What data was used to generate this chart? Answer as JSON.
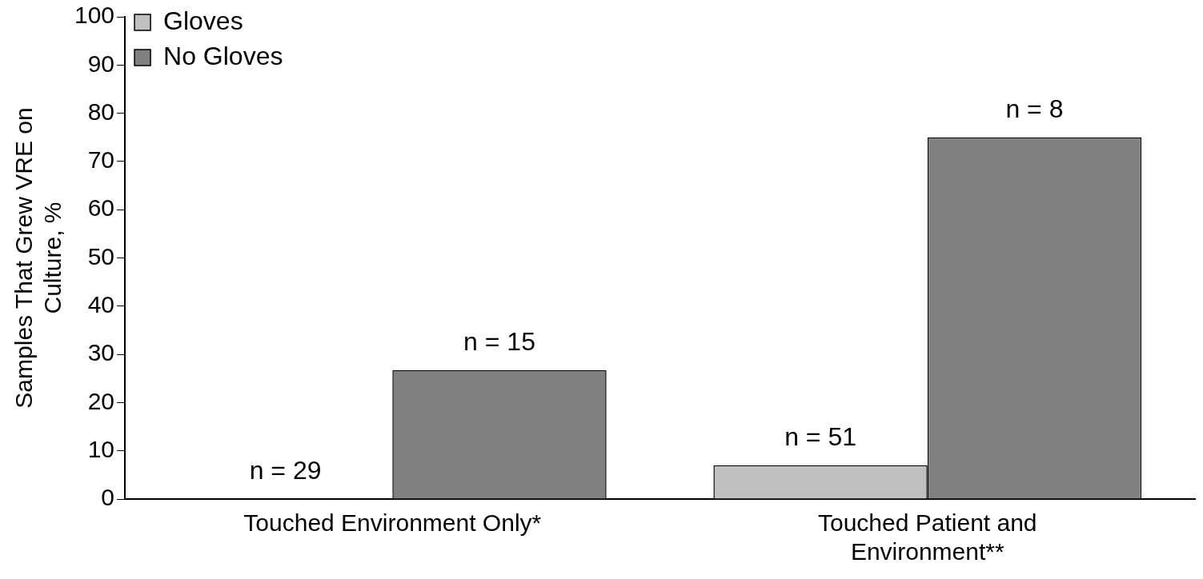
{
  "chart_data": {
    "type": "bar",
    "ylabel": "Samples That Grew VRE on Culture, %",
    "categories": [
      "Touched Environment Only*",
      "Touched Patient and Environment**"
    ],
    "series": [
      {
        "name": "Gloves",
        "color": "#c0c0c0",
        "values": [
          0,
          7
        ]
      },
      {
        "name": "No Gloves",
        "color": "#808080",
        "values": [
          26.7,
          75
        ]
      }
    ],
    "annotations": [
      "n = 29",
      "n = 15",
      "n = 51",
      "n = 8"
    ],
    "ylim": [
      0,
      100
    ],
    "yticks": [
      0,
      10,
      20,
      30,
      40,
      50,
      60,
      70,
      80,
      90,
      100
    ],
    "grid": false,
    "legend": "top left"
  }
}
